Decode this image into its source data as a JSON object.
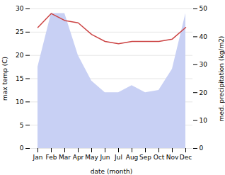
{
  "chart_data": {
    "type": "line",
    "xlabel": "date (month)",
    "ylabel": "max temp (C)",
    "y2label": "med. precipitation (kg/m2)",
    "categories": [
      "Jan",
      "Feb",
      "Mar",
      "Apr",
      "May",
      "Jun",
      "Jul",
      "Aug",
      "Sep",
      "Oct",
      "Nov",
      "Dec"
    ],
    "series": [
      {
        "type": "area",
        "color": "#c8d0f4",
        "values": [
          17.5,
          29.0,
          29.0,
          20.0,
          14.5,
          12.0,
          12.0,
          13.5,
          12.0,
          12.5,
          17.0,
          29.0
        ]
      },
      {
        "type": "line",
        "color": "#cc4444",
        "values": [
          26.0,
          29.0,
          27.5,
          27.0,
          24.5,
          23.0,
          22.5,
          23.0,
          23.0,
          23.0,
          23.5,
          26.0
        ]
      }
    ],
    "ylim": [
      0,
      30
    ],
    "yticks": [
      0,
      5,
      10,
      15,
      20,
      25,
      30
    ],
    "y2lim": [
      0,
      50
    ],
    "y2ticks": [
      0,
      10,
      20,
      30,
      40,
      50
    ],
    "grid": true
  }
}
